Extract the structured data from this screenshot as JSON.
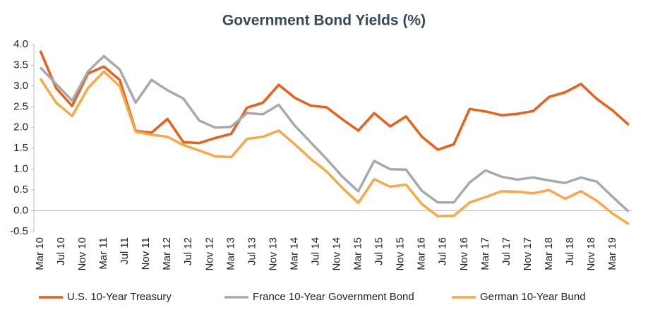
{
  "chart_data": {
    "type": "line",
    "title": "Government Bond Yields (%)",
    "x": [
      "2010-03",
      "2010-06",
      "2010-09",
      "2010-12",
      "2011-03",
      "2011-06",
      "2011-09",
      "2011-12",
      "2012-03",
      "2012-06",
      "2012-09",
      "2012-12",
      "2013-03",
      "2013-06",
      "2013-09",
      "2013-12",
      "2014-03",
      "2014-06",
      "2014-09",
      "2014-12",
      "2015-03",
      "2015-06",
      "2015-09",
      "2015-12",
      "2016-03",
      "2016-06",
      "2016-09",
      "2016-12",
      "2017-03",
      "2017-06",
      "2017-09",
      "2017-12",
      "2018-03",
      "2018-06",
      "2018-09",
      "2018-12",
      "2019-03",
      "2019-06"
    ],
    "xticks": [
      {
        "value": "2010-03",
        "label": "Mar 10"
      },
      {
        "value": "2010-07",
        "label": "Jul 10"
      },
      {
        "value": "2010-11",
        "label": "Nov 10"
      },
      {
        "value": "2011-03",
        "label": "Mar 11"
      },
      {
        "value": "2011-07",
        "label": "Jul 11"
      },
      {
        "value": "2011-11",
        "label": "Nov 11"
      },
      {
        "value": "2012-03",
        "label": "Mar 12"
      },
      {
        "value": "2012-07",
        "label": "Jul 12"
      },
      {
        "value": "2012-11",
        "label": "Nov 12"
      },
      {
        "value": "2013-03",
        "label": "Mar 13"
      },
      {
        "value": "2013-07",
        "label": "Jul 13"
      },
      {
        "value": "2013-11",
        "label": "Nov 13"
      },
      {
        "value": "2014-03",
        "label": "Mar 14"
      },
      {
        "value": "2014-07",
        "label": "Jul 14"
      },
      {
        "value": "2014-11",
        "label": "Nov 14"
      },
      {
        "value": "2015-03",
        "label": "Mar 15"
      },
      {
        "value": "2015-07",
        "label": "Jul 15"
      },
      {
        "value": "2015-11",
        "label": "Nov 15"
      },
      {
        "value": "2016-03",
        "label": "Mar 16"
      },
      {
        "value": "2016-07",
        "label": "Jul 16"
      },
      {
        "value": "2016-11",
        "label": "Nov 16"
      },
      {
        "value": "2017-03",
        "label": "Mar 17"
      },
      {
        "value": "2017-07",
        "label": "Jul 17"
      },
      {
        "value": "2017-11",
        "label": "Nov 17"
      },
      {
        "value": "2018-03",
        "label": "Mar 18"
      },
      {
        "value": "2018-07",
        "label": "Jul 18"
      },
      {
        "value": "2018-11",
        "label": "Nov 18"
      },
      {
        "value": "2019-03",
        "label": "Mar 19"
      }
    ],
    "ylim": [
      -0.5,
      4.0
    ],
    "yticks": [
      -0.5,
      {
        "value": 0,
        "label": "0.0"
      },
      0.5,
      {
        "value": 1,
        "label": "1.0"
      },
      1.5,
      {
        "value": 2,
        "label": "2.0"
      },
      2.5,
      {
        "value": 3,
        "label": "3.0"
      },
      3.5,
      {
        "value": 4,
        "label": "4.0"
      }
    ],
    "grid": false,
    "legend": "bottom",
    "series": [
      {
        "name": "U.S. 10-Year Treasury",
        "color": "#e8601c",
        "values": [
          3.85,
          2.95,
          2.52,
          3.3,
          3.47,
          3.15,
          1.92,
          1.88,
          2.21,
          1.65,
          1.63,
          1.75,
          1.85,
          2.48,
          2.6,
          3.03,
          2.72,
          2.53,
          2.49,
          2.2,
          1.93,
          2.35,
          2.03,
          2.27,
          1.78,
          1.47,
          1.6,
          2.45,
          2.39,
          2.3,
          2.33,
          2.4,
          2.74,
          2.85,
          3.05,
          2.69,
          2.41,
          2.07
        ]
      },
      {
        "name": "France 10-Year Government Bond",
        "color": "#a6a9ad",
        "values": [
          3.45,
          3.05,
          2.65,
          3.35,
          3.72,
          3.4,
          2.6,
          3.15,
          2.9,
          2.7,
          2.17,
          2.0,
          2.02,
          2.35,
          2.32,
          2.55,
          2.05,
          1.65,
          1.25,
          0.82,
          0.47,
          1.2,
          1.0,
          0.99,
          0.48,
          0.2,
          0.2,
          0.68,
          0.97,
          0.82,
          0.75,
          0.8,
          0.73,
          0.67,
          0.8,
          0.7,
          0.33,
          -0.02
        ]
      },
      {
        "name": "German 10-Year Bund",
        "color": "#f7a84a",
        "values": [
          3.18,
          2.6,
          2.28,
          2.95,
          3.35,
          3.0,
          1.9,
          1.83,
          1.78,
          1.58,
          1.45,
          1.31,
          1.29,
          1.73,
          1.78,
          1.93,
          1.6,
          1.25,
          0.95,
          0.55,
          0.19,
          0.76,
          0.58,
          0.63,
          0.16,
          -0.13,
          -0.12,
          0.2,
          0.33,
          0.47,
          0.46,
          0.42,
          0.5,
          0.29,
          0.47,
          0.24,
          -0.07,
          -0.32
        ]
      }
    ]
  }
}
